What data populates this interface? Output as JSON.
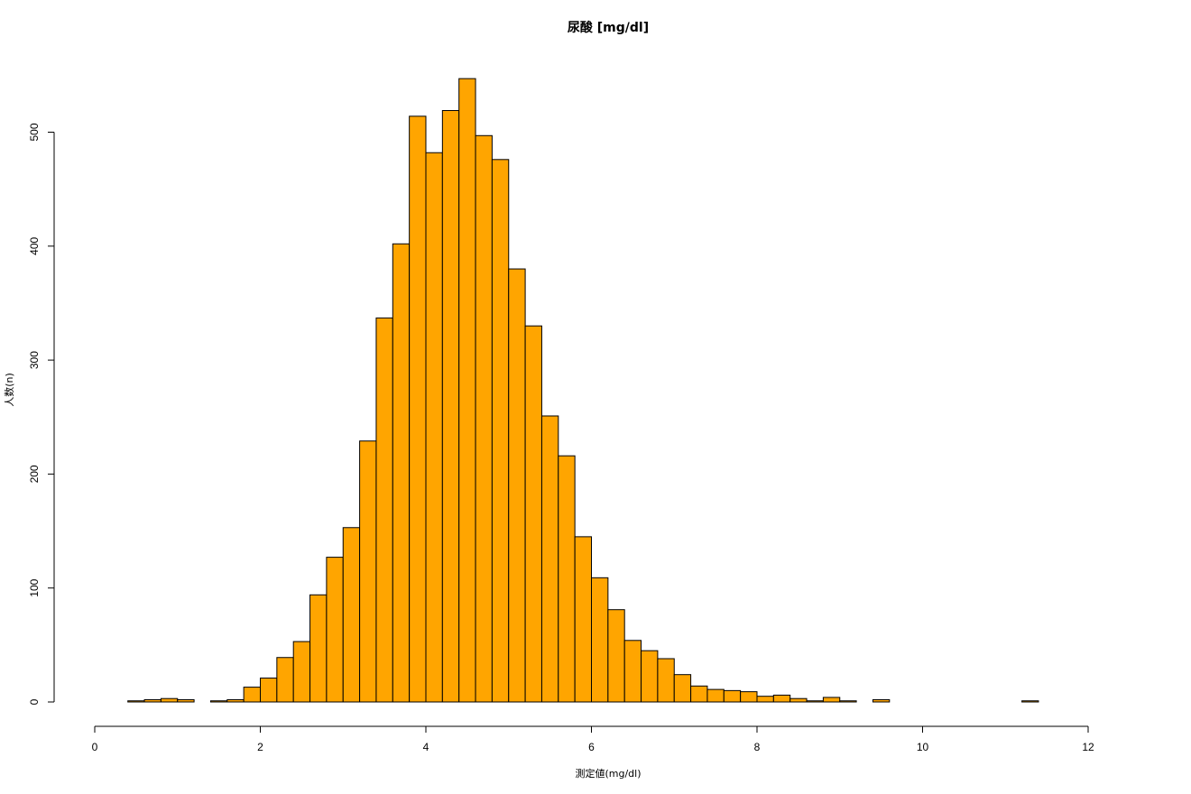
{
  "chart_data": {
    "type": "bar",
    "title": "尿酸 [mg/dl]",
    "xlabel": "測定値(mg/dl)",
    "ylabel": "人数(n)",
    "xlim": [
      0,
      12
    ],
    "ylim": [
      0,
      550
    ],
    "x_ticks": [
      0,
      2,
      4,
      6,
      8,
      10,
      12
    ],
    "y_ticks": [
      0,
      100,
      200,
      300,
      400,
      500
    ],
    "grid": false,
    "legend": "none",
    "bar_color": "#FFA500",
    "bin_width": 0.2,
    "bin_start": 0.4,
    "values": [
      1,
      2,
      3,
      2,
      0,
      1,
      2,
      13,
      21,
      39,
      53,
      94,
      127,
      153,
      229,
      337,
      402,
      514,
      482,
      519,
      547,
      497,
      476,
      380,
      330,
      251,
      216,
      145,
      109,
      81,
      54,
      45,
      38,
      24,
      14,
      11,
      10,
      9,
      5,
      6,
      3,
      1,
      4,
      1,
      0,
      2,
      0,
      0,
      0,
      0,
      0,
      0,
      0,
      0,
      1
    ]
  }
}
